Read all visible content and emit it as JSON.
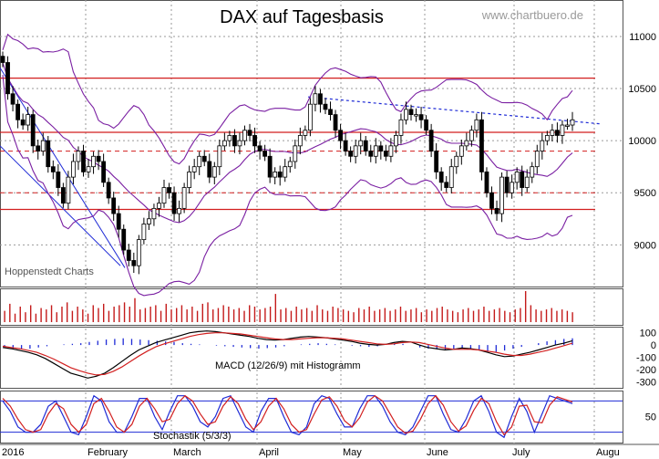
{
  "title": "DAX auf Tagesbasis",
  "watermark": "www.chartbuero.de",
  "source": "Hoppenstedt Charts",
  "chart_data": [
    {
      "type": "candlestick",
      "title": "DAX auf Tagesbasis",
      "ylim": [
        8600,
        11350
      ],
      "y_ticks": [
        9000,
        9500,
        10000,
        10500,
        11000
      ],
      "x_labels": [
        "2016",
        "February",
        "March",
        "April",
        "May",
        "June",
        "July",
        "Augu"
      ],
      "grid": true,
      "horizontal_lines": {
        "solid": [
          10600,
          10080,
          9340
        ],
        "dashed": [
          9900,
          9500
        ]
      },
      "trendline_start": 10420,
      "trendline_end": 10160,
      "closes": [
        10750,
        10450,
        10350,
        10200,
        10150,
        10250,
        9950,
        9900,
        10000,
        9750,
        9700,
        9550,
        9400,
        9650,
        9800,
        9900,
        9700,
        9750,
        9850,
        9800,
        9600,
        9450,
        9300,
        9150,
        8950,
        8850,
        8800,
        9050,
        9200,
        9250,
        9350,
        9400,
        9550,
        9500,
        9300,
        9350,
        9550,
        9700,
        9750,
        9850,
        9800,
        9650,
        9750,
        9950,
        10000,
        10050,
        9950,
        10000,
        10100,
        10050,
        9950,
        9900,
        9850,
        9650,
        9700,
        9650,
        9750,
        9800,
        9950,
        10050,
        10100,
        10350,
        10450,
        10350,
        10300,
        10250,
        10100,
        10000,
        9900,
        9850,
        9950,
        10000,
        9900,
        9850,
        9950,
        9900,
        9850,
        9950,
        10050,
        10200,
        10300,
        10250,
        10250,
        10200,
        10100,
        9900,
        9700,
        9600,
        9550,
        9750,
        9850,
        9950,
        10000,
        10100,
        10200,
        9700,
        9500,
        9350,
        9300,
        9650,
        9500,
        9600,
        9700,
        9550,
        9650,
        9750,
        9900,
        10000,
        10050,
        10100,
        10050,
        10150,
        10150,
        10200
      ]
    },
    {
      "type": "bar",
      "title": "",
      "values": [
        40,
        65,
        30,
        55,
        35,
        60,
        30,
        50,
        45,
        60,
        35,
        55,
        70,
        40,
        55,
        45,
        30,
        60,
        50,
        65,
        40,
        55,
        60,
        70,
        55,
        85,
        45,
        50,
        55,
        60,
        40,
        65,
        45,
        50,
        60,
        45,
        55,
        40,
        65,
        70,
        45,
        50,
        60,
        55,
        45,
        50,
        40,
        60,
        55,
        45,
        50,
        55,
        100,
        45,
        50,
        40,
        55,
        45,
        50,
        40,
        60,
        45,
        40,
        55,
        50,
        45,
        40,
        35,
        50,
        45,
        55,
        40,
        45,
        50,
        40,
        45,
        55,
        40,
        45,
        50,
        35,
        45,
        40,
        50,
        55,
        45,
        40,
        35,
        45,
        50,
        40,
        45,
        55,
        40,
        45,
        50,
        40,
        35,
        45,
        50,
        110,
        60,
        45,
        40,
        45,
        50,
        40,
        45,
        40,
        35
      ]
    },
    {
      "type": "line",
      "title": "MACD (12/26/9) mit Histogramm",
      "ylim": [
        -350,
        150
      ],
      "y_ticks": [
        100,
        0,
        -100,
        -200,
        -300
      ],
      "series": [
        {
          "values": [
            -20,
            -30,
            -45,
            -60,
            -80,
            -110,
            -150,
            -190,
            -230,
            -250,
            -270,
            -255,
            -230,
            -185,
            -135,
            -85,
            -40,
            -10,
            20,
            40,
            60,
            80,
            100,
            110,
            115,
            110,
            100,
            90,
            80,
            70,
            55,
            45,
            40,
            45,
            55,
            65,
            70,
            65,
            60,
            50,
            40,
            30,
            15,
            5,
            0,
            5,
            20,
            30,
            25,
            0,
            -20,
            -30,
            -40,
            -35,
            -25,
            -30,
            -40,
            -60,
            -80,
            -95,
            -90,
            -75,
            -60,
            -40,
            -20,
            0,
            15,
            35
          ]
        },
        {
          "values": [
            -10,
            -20,
            -30,
            -45,
            -60,
            -85,
            -115,
            -150,
            -185,
            -210,
            -230,
            -245,
            -240,
            -215,
            -180,
            -135,
            -90,
            -50,
            -15,
            10,
            30,
            50,
            70,
            85,
            95,
            100,
            100,
            95,
            90,
            80,
            70,
            60,
            50,
            45,
            45,
            50,
            55,
            60,
            60,
            55,
            50,
            40,
            30,
            20,
            10,
            5,
            10,
            20,
            25,
            20,
            5,
            -10,
            -25,
            -35,
            -35,
            -35,
            -40,
            -50,
            -60,
            -75,
            -85,
            -85,
            -75,
            -60,
            -45,
            -25,
            -5,
            15
          ]
        }
      ],
      "histogram": [
        -20,
        -30,
        -35,
        -30,
        -20,
        -10,
        0,
        5,
        10,
        15,
        25,
        35,
        45,
        50,
        55,
        50,
        45,
        40,
        35,
        30,
        25,
        15,
        10,
        5,
        0,
        -5,
        -10,
        -15,
        -20,
        -25,
        -30,
        -25,
        -20,
        -10,
        0,
        5,
        10,
        15,
        10,
        5,
        0,
        -5,
        -10,
        -15,
        -10,
        0,
        10,
        10,
        0,
        -20,
        -30,
        -35,
        -40,
        -30,
        -25,
        -30,
        -40,
        -50,
        -55,
        -45,
        -30,
        -15,
        0,
        15,
        30,
        40,
        50,
        55
      ]
    },
    {
      "type": "line",
      "title": "Stochastik (5/3/3)",
      "ylim": [
        0,
        100
      ],
      "y_ticks": [
        50
      ],
      "horizontal_lines": [
        80,
        20
      ],
      "series": [
        {
          "values": [
            80,
            60,
            30,
            20,
            20,
            35,
            70,
            80,
            50,
            20,
            15,
            50,
            90,
            80,
            40,
            20,
            20,
            50,
            85,
            85,
            50,
            25,
            60,
            90,
            90,
            70,
            40,
            30,
            50,
            85,
            90,
            60,
            30,
            20,
            60,
            85,
            85,
            50,
            20,
            15,
            30,
            75,
            90,
            85,
            55,
            30,
            30,
            65,
            90,
            90,
            70,
            40,
            20,
            15,
            30,
            60,
            90,
            90,
            55,
            25,
            20,
            45,
            80,
            90,
            60,
            20,
            10,
            50,
            85,
            60,
            20,
            55,
            90,
            85,
            80,
            75
          ]
        },
        {
          "values": [
            85,
            70,
            45,
            25,
            20,
            25,
            55,
            75,
            65,
            35,
            20,
            35,
            75,
            85,
            60,
            30,
            20,
            35,
            70,
            85,
            65,
            40,
            45,
            75,
            90,
            80,
            55,
            35,
            40,
            70,
            88,
            75,
            45,
            25,
            40,
            70,
            85,
            65,
            35,
            20,
            25,
            55,
            82,
            88,
            70,
            42,
            30,
            48,
            78,
            90,
            80,
            55,
            30,
            18,
            22,
            45,
            75,
            90,
            72,
            40,
            22,
            32,
            62,
            85,
            75,
            40,
            15,
            30,
            70,
            72,
            40,
            38,
            72,
            88,
            83,
            78
          ]
        }
      ]
    }
  ],
  "colors": {
    "bollinger": "#7a1fa2",
    "channel": "#1f2bd6",
    "level_line": "#d21f1f",
    "volume": "#c41a1a",
    "macd_line": "#000000",
    "macd_signal": "#d21f1f",
    "histogram": "#1f2bd6",
    "stoch_k": "#1f2bd6",
    "stoch_d": "#d21f1f",
    "grid": "#9a9a9a"
  }
}
